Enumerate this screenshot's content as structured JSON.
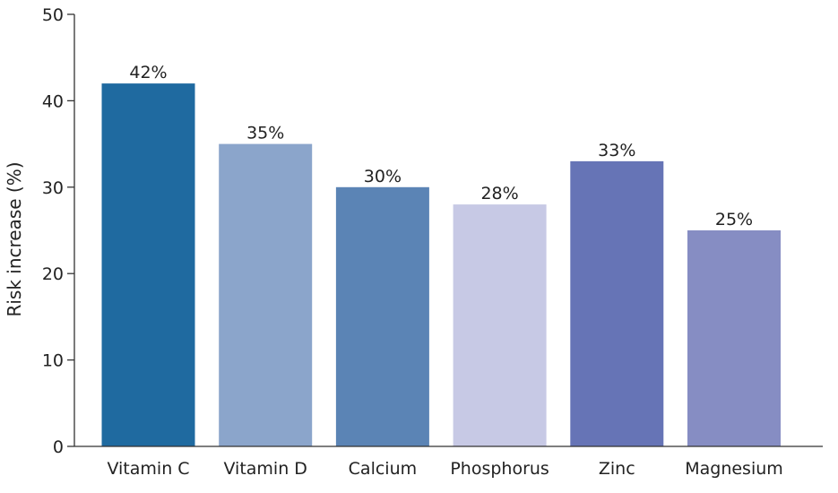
{
  "chart_data": {
    "type": "bar",
    "title": "",
    "xlabel": "",
    "ylabel": "Risk increase (%)",
    "categories": [
      "Vitamin C",
      "Vitamin D",
      "Calcium",
      "Phosphorus",
      "Zinc",
      "Magnesium"
    ],
    "values": [
      42,
      35,
      30,
      28,
      33,
      25
    ],
    "data_labels": [
      "42%",
      "35%",
      "30%",
      "28%",
      "33%",
      "25%"
    ],
    "colors": [
      "#1f6aa0",
      "#8ba5cb",
      "#5b84b5",
      "#c7c9e5",
      "#6674b6",
      "#868dc3"
    ],
    "ylim": [
      0,
      50
    ],
    "yticks": [
      0,
      10,
      20,
      30,
      40,
      50
    ],
    "grid": false,
    "legend": "none"
  }
}
